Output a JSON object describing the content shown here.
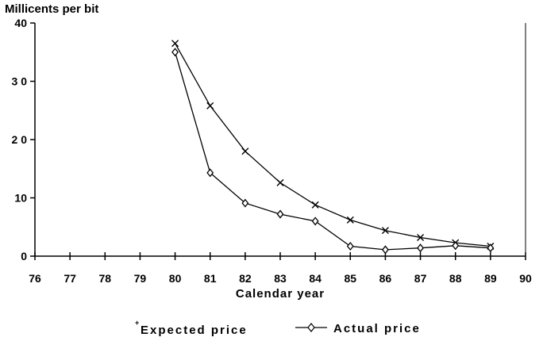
{
  "chart_data": {
    "type": "line",
    "ylabel": "Millicents per bit",
    "xlabel": "Calendar year",
    "xlim": [
      76,
      90
    ],
    "ylim": [
      0,
      40
    ],
    "x_ticks": [
      "76",
      "77",
      "78",
      "79",
      "80",
      "81",
      "82",
      "83",
      "84",
      "85",
      "86",
      "87",
      "88",
      "89",
      "90"
    ],
    "y_ticks": [
      "0",
      "10",
      "2 0",
      "3 0",
      "40"
    ],
    "grid": false,
    "legend_position": "bottom",
    "series": [
      {
        "name": "Expected price",
        "legend_label": "Expected price",
        "marker": "x",
        "x": [
          80,
          81,
          82,
          83,
          84,
          85,
          86,
          87,
          88,
          89
        ],
        "y": [
          36.5,
          25.8,
          18.0,
          12.6,
          8.8,
          6.2,
          4.4,
          3.2,
          2.3,
          1.7
        ]
      },
      {
        "name": "Actual price",
        "legend_label": "Actual price",
        "marker": "diamond",
        "x": [
          80,
          81,
          82,
          83,
          84,
          85,
          86,
          87,
          88,
          89
        ],
        "y": [
          35.0,
          14.3,
          9.1,
          7.2,
          6.0,
          1.7,
          1.1,
          1.4,
          1.8,
          1.4
        ]
      }
    ]
  }
}
